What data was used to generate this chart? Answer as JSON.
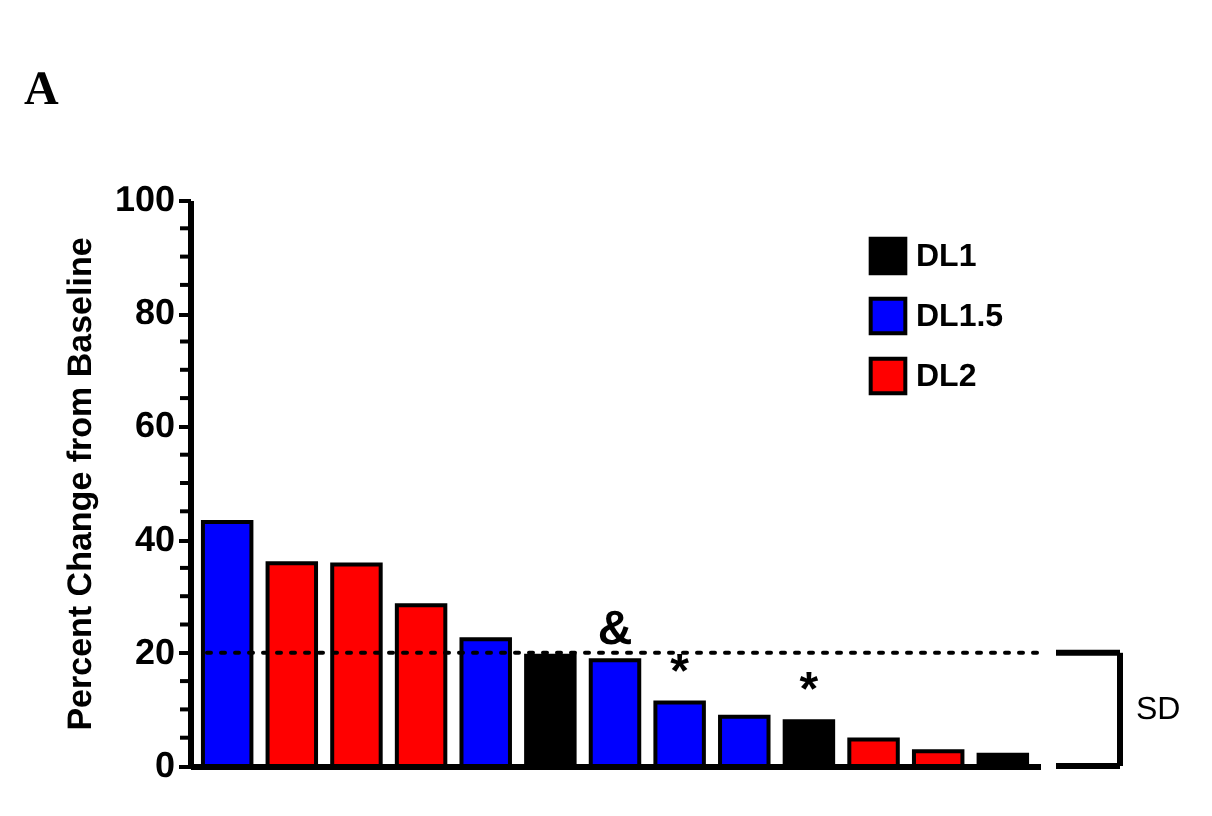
{
  "chart_data": {
    "type": "bar",
    "title": "A",
    "ylabel": "Percent Change from Baseline",
    "categories": [
      null,
      null,
      null,
      null,
      null,
      null,
      null,
      null,
      null,
      null,
      null,
      null,
      null
    ],
    "series": [
      {
        "name": "DL1",
        "color": "#000000",
        "values": [
          null,
          null,
          null,
          null,
          null,
          19.5,
          null,
          null,
          null,
          7.9,
          null,
          null,
          2.0
        ]
      },
      {
        "name": "DL1.5",
        "color": "#0000ff",
        "values": [
          43.1,
          null,
          null,
          null,
          22.4,
          null,
          18.7,
          11.2,
          8.7,
          null,
          null,
          null,
          null
        ]
      },
      {
        "name": "DL2",
        "color": "#ff0000",
        "values": [
          null,
          35.8,
          35.6,
          28.4,
          null,
          null,
          null,
          null,
          null,
          null,
          4.7,
          2.6,
          null
        ]
      }
    ],
    "ylim": [
      0,
      100
    ],
    "yticks": [
      0,
      {
        "value": 5,
        "label": null
      },
      {
        "value": 10,
        "label": null
      },
      {
        "value": 15,
        "label": null
      },
      20,
      {
        "value": 25,
        "label": null
      },
      {
        "value": 30,
        "label": null
      },
      {
        "value": 35,
        "label": null
      },
      40,
      {
        "value": 45,
        "label": null
      },
      {
        "value": 50,
        "label": null
      },
      {
        "value": 55,
        "label": null
      },
      60,
      {
        "value": 65,
        "label": null
      },
      {
        "value": 70,
        "label": null
      },
      {
        "value": 75,
        "label": null
      },
      80,
      {
        "value": 85,
        "label": null
      },
      {
        "value": 90,
        "label": null
      },
      {
        "value": 95,
        "label": null
      },
      100
    ],
    "ref_lines": [
      {
        "axis": "y",
        "value": 20,
        "line_style": "dotted",
        "color": "#000000"
      }
    ],
    "annotations": [
      {
        "text": "&",
        "y": 18.7
      },
      {
        "text": "*",
        "y": 11.2
      },
      {
        "text": "*",
        "y": 7.9
      },
      "SD"
    ],
    "legend": "top right",
    "grid": false,
    "tick_labels": "y"
  }
}
